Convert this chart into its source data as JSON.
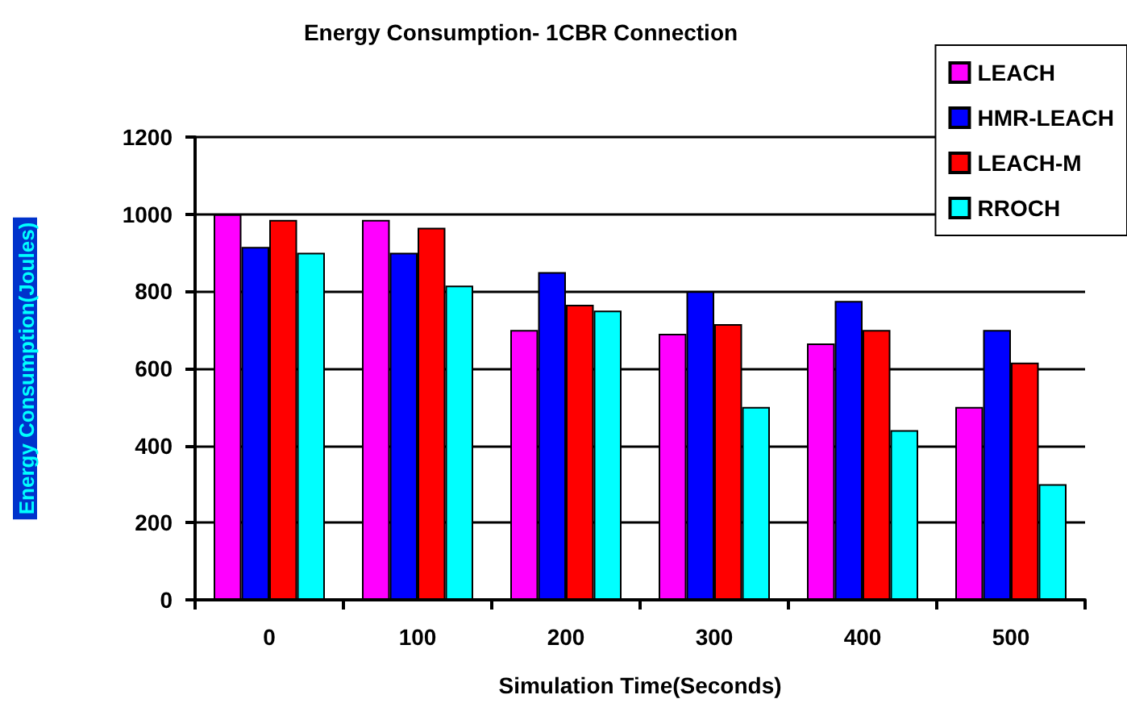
{
  "chart_data": {
    "type": "bar",
    "title": "Energy Consumption- 1CBR Connection",
    "xlabel": "Simulation Time(Seconds)",
    "ylabel": "Energy Consumption(Joules)",
    "categories": [
      "0",
      "100",
      "200",
      "300",
      "400",
      "500"
    ],
    "series": [
      {
        "name": "LEACH",
        "color": "#ff00ff",
        "values": [
          1000,
          985,
          700,
          690,
          665,
          500
        ]
      },
      {
        "name": "HMR-LEACH",
        "color": "#0000ff",
        "values": [
          915,
          900,
          850,
          800,
          775,
          700
        ]
      },
      {
        "name": "LEACH-M",
        "color": "#ff0000",
        "values": [
          985,
          965,
          765,
          715,
          700,
          615
        ]
      },
      {
        "name": "RROCH",
        "color": "#00ffff",
        "values": [
          900,
          815,
          750,
          500,
          440,
          300
        ]
      }
    ],
    "ylim": [
      0,
      1200
    ],
    "yticks": [
      0,
      200,
      400,
      600,
      800,
      1000,
      1200
    ],
    "grid": "y",
    "legend": "top right"
  }
}
